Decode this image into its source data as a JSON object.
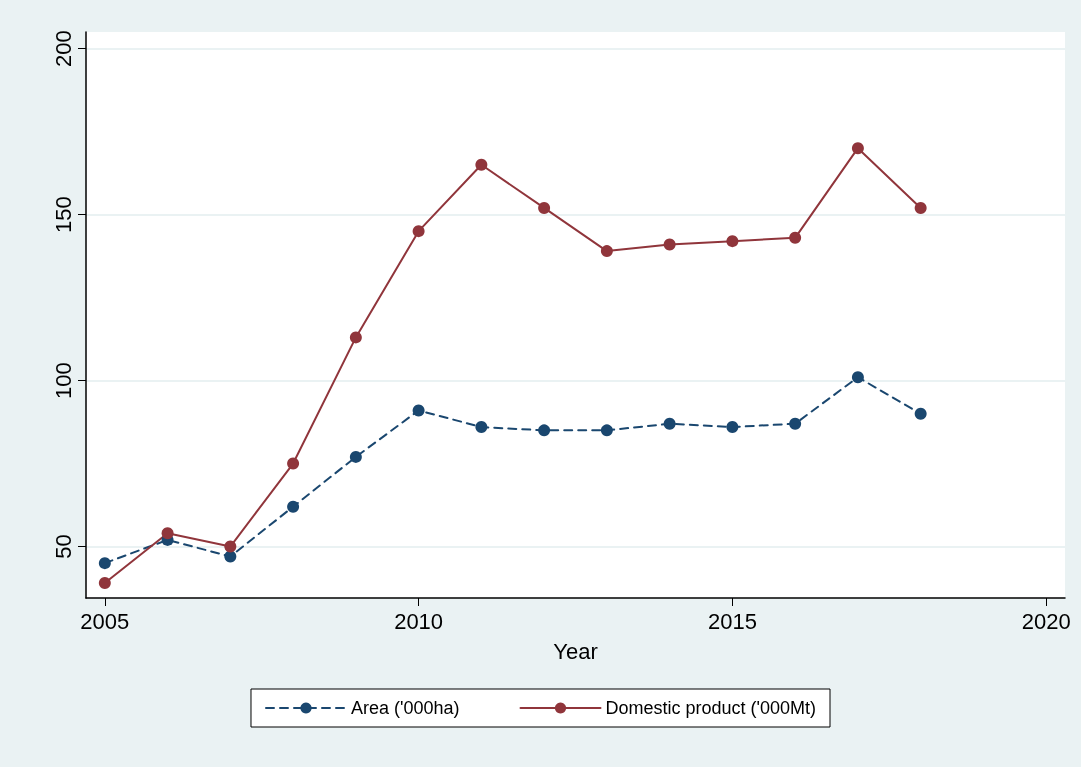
{
  "chart_data": {
    "type": "line",
    "xlabel": "Year",
    "x": [
      2005,
      2006,
      2007,
      2008,
      2009,
      2010,
      2011,
      2012,
      2013,
      2014,
      2015,
      2016,
      2017,
      2018
    ],
    "series": [
      {
        "name": "Area ('000ha)",
        "color": "#1a476f",
        "line_style": "dashed",
        "values": [
          45,
          52,
          47,
          62,
          77,
          91,
          86,
          85,
          85,
          87,
          86,
          87,
          101,
          90
        ]
      },
      {
        "name": "Domestic product ('000Mt)",
        "color": "#90353b",
        "line_style": "solid",
        "values": [
          39,
          54,
          50,
          75,
          113,
          145,
          165,
          152,
          139,
          141,
          142,
          143,
          170,
          152
        ]
      }
    ],
    "xlim": [
      2004.7,
      2020.3
    ],
    "xticks": [
      2005,
      2010,
      2015,
      2020
    ],
    "ylim": [
      34.5,
      205
    ],
    "yticks": [
      50,
      100,
      150,
      200
    ],
    "grid": "y",
    "legend": "bottom",
    "marker": "circle"
  }
}
